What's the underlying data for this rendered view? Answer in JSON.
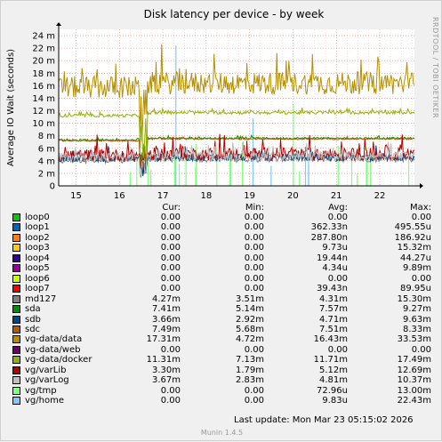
{
  "chart_data": {
    "type": "line",
    "title": "Disk latency per device - by week",
    "ylabel": "Average IO Wait (seconds)",
    "yticks": [
      "0",
      "2 m",
      "4 m",
      "6 m",
      "8 m",
      "10 m",
      "12 m",
      "14 m",
      "16 m",
      "18 m",
      "20 m",
      "22 m",
      "24 m"
    ],
    "ylim": [
      0,
      0.025
    ],
    "xticks": [
      "15",
      "16",
      "17",
      "18",
      "19",
      "20",
      "21",
      "22"
    ],
    "xlim": [
      14.6,
      22.8
    ],
    "grid": true,
    "series": [
      {
        "name": "loop0",
        "color": "#00cc00",
        "cur": "0.00",
        "min": "0.00",
        "avg": "0.00",
        "max": "0.00",
        "approx_ms": {
          "base": 0
        }
      },
      {
        "name": "loop1",
        "color": "#0066b3",
        "cur": "0.00",
        "min": "0.00",
        "avg": "362.33n",
        "max": "495.55u",
        "approx_ms": {
          "base": 0
        }
      },
      {
        "name": "loop2",
        "color": "#ff8000",
        "cur": "0.00",
        "min": "0.00",
        "avg": "287.80n",
        "max": "186.92u",
        "approx_ms": {
          "base": 0
        }
      },
      {
        "name": "loop3",
        "color": "#ffcc00",
        "cur": "0.00",
        "min": "0.00",
        "avg": "9.73u",
        "max": "15.32m",
        "approx_ms": {
          "base": 0
        }
      },
      {
        "name": "loop4",
        "color": "#330099",
        "cur": "0.00",
        "min": "0.00",
        "avg": "19.44n",
        "max": "44.27u",
        "approx_ms": {
          "base": 0
        }
      },
      {
        "name": "loop5",
        "color": "#990099",
        "cur": "0.00",
        "min": "0.00",
        "avg": "4.34u",
        "max": "9.89m",
        "approx_ms": {
          "base": 0
        }
      },
      {
        "name": "loop6",
        "color": "#ccff00",
        "cur": "0.00",
        "min": "0.00",
        "avg": "0.00",
        "max": "0.00",
        "approx_ms": {
          "base": 0
        }
      },
      {
        "name": "loop7",
        "color": "#ff0000",
        "cur": "0.00",
        "min": "0.00",
        "avg": "39.43n",
        "max": "89.95u",
        "approx_ms": {
          "base": 0
        }
      },
      {
        "name": "md127",
        "color": "#808080",
        "cur": "4.27m",
        "min": "3.51m",
        "avg": "4.31m",
        "max": "15.30m",
        "approx_ms": {
          "base": 4.3,
          "noise": 0.5
        }
      },
      {
        "name": "sda",
        "color": "#008f00",
        "cur": "7.41m",
        "min": "5.14m",
        "avg": "7.57m",
        "max": "9.27m",
        "approx_ms": {
          "base": 7.6,
          "noise": 0.15
        }
      },
      {
        "name": "sdb",
        "color": "#00487d",
        "cur": "3.66m",
        "min": "2.92m",
        "avg": "4.71m",
        "max": "9.63m",
        "approx_ms": {
          "base": 4.6,
          "noise": 0.6
        }
      },
      {
        "name": "sdc",
        "color": "#b35a00",
        "cur": "7.49m",
        "min": "5.68m",
        "avg": "7.51m",
        "max": "8.33m",
        "approx_ms": {
          "base": 7.5,
          "noise": 0.12
        }
      },
      {
        "name": "vg-data/data",
        "color": "#b38f00",
        "cur": "17.31m",
        "min": "4.72m",
        "avg": "16.43m",
        "max": "33.53m",
        "approx_ms": {
          "base": 16.4,
          "noise": 1.8
        }
      },
      {
        "name": "vg-data/web",
        "color": "#6b006b",
        "cur": "0.00",
        "min": "0.00",
        "avg": "0.00",
        "max": "0.00",
        "approx_ms": {
          "base": 0
        }
      },
      {
        "name": "vg-data/docker",
        "color": "#8fb300",
        "cur": "11.31m",
        "min": "7.13m",
        "avg": "11.71m",
        "max": "17.49m",
        "approx_ms": {
          "base": 11.7,
          "noise": 0.25
        }
      },
      {
        "name": "vg/varLib",
        "color": "#b30000",
        "cur": "3.30m",
        "min": "1.79m",
        "avg": "5.12m",
        "max": "12.69m",
        "approx_ms": {
          "base": 5.1,
          "noise": 1.0
        }
      },
      {
        "name": "vg/varLog",
        "color": "#bebebe",
        "cur": "3.67m",
        "min": "2.83m",
        "avg": "4.81m",
        "max": "10.37m",
        "approx_ms": {
          "base": 4.8,
          "noise": 0.7
        }
      },
      {
        "name": "vg/tmp",
        "color": "#80ff80",
        "cur": "0.00",
        "min": "0.00",
        "avg": "72.96u",
        "max": "13.00m",
        "approx_ms": {
          "base": 0,
          "spikes": true
        }
      },
      {
        "name": "vg/home",
        "color": "#80c9ff",
        "cur": "0.00",
        "min": "0.00",
        "avg": "9.83u",
        "max": "22.43m",
        "approx_ms": {
          "base": 0,
          "spikes": true
        }
      }
    ]
  },
  "legend_headers": {
    "cur": "Cur:",
    "min": "Min:",
    "avg": "Avg:",
    "max": "Max:"
  },
  "last_update": "Last update:  Mon Mar 23 05:15:02 2026",
  "version": "Munin 1.4.5",
  "credit": "RRDTOOL / TOBI OETIKER"
}
